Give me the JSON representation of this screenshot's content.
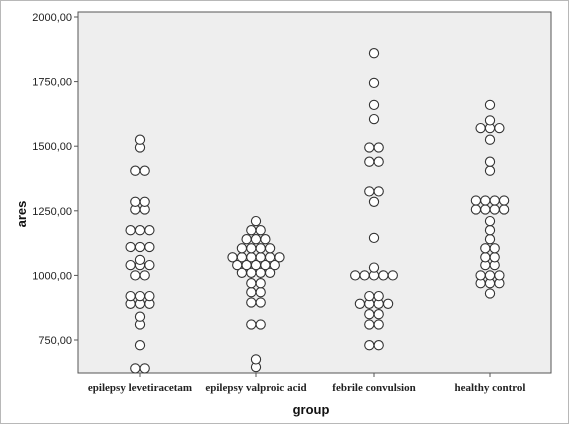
{
  "chart_data": {
    "type": "scatter",
    "xlabel": "group",
    "ylabel": "ares",
    "categories": [
      "epilepsy levetiracetam",
      "epilepsy valproic acid",
      "febrile convulsion",
      "healthy control"
    ],
    "ylim": [
      620,
      2000
    ],
    "yticks": [
      750,
      1000,
      1250,
      1500,
      1750,
      2000
    ],
    "ytick_labels": [
      "750,00",
      "1000,00",
      "1250,00",
      "1500,00",
      "1750,00",
      "2000,00"
    ],
    "grid": false,
    "plot_background": "#eeeeee",
    "marker_fill": "#ffffff",
    "marker_stroke": "#333333",
    "series": [
      {
        "values": [
          1525,
          1495,
          1405,
          1405,
          1285,
          1285,
          1255,
          1255,
          1175,
          1175,
          1175,
          1110,
          1110,
          1110,
          1060,
          1040,
          1040,
          1040,
          1000,
          1000,
          920,
          920,
          920,
          890,
          890,
          890,
          840,
          810,
          730,
          640,
          640
        ]
      },
      {
        "values": [
          1210,
          1175,
          1175,
          1140,
          1140,
          1140,
          1105,
          1105,
          1105,
          1105,
          1070,
          1070,
          1070,
          1070,
          1070,
          1070,
          1040,
          1040,
          1040,
          1040,
          1040,
          1010,
          1010,
          1010,
          1010,
          970,
          970,
          935,
          935,
          895,
          895,
          810,
          810,
          675,
          645
        ]
      },
      {
        "values": [
          1860,
          1745,
          1660,
          1605,
          1495,
          1495,
          1440,
          1440,
          1325,
          1325,
          1285,
          1145,
          1030,
          1000,
          1000,
          1000,
          1000,
          1000,
          920,
          920,
          890,
          890,
          890,
          890,
          850,
          850,
          810,
          810,
          730,
          730
        ]
      },
      {
        "values": [
          1660,
          1600,
          1570,
          1570,
          1570,
          1525,
          1440,
          1405,
          1290,
          1290,
          1290,
          1290,
          1255,
          1255,
          1255,
          1255,
          1210,
          1175,
          1140,
          1105,
          1105,
          1070,
          1070,
          1040,
          1040,
          1000,
          1000,
          1000,
          970,
          970,
          970,
          930
        ]
      }
    ]
  }
}
